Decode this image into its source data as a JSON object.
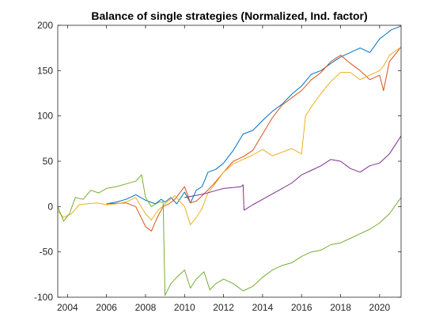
{
  "chart_data": {
    "type": "line",
    "title": "Balance of single strategies (Normalized, Ind. factor)",
    "xlabel": "",
    "ylabel": "",
    "xlim": [
      2003.5,
      2021.1
    ],
    "ylim": [
      -100,
      200
    ],
    "x_ticks": [
      2004,
      2006,
      2008,
      2010,
      2012,
      2014,
      2016,
      2018,
      2020
    ],
    "y_ticks": [
      -100,
      -50,
      0,
      50,
      100,
      150,
      200
    ],
    "grid": false,
    "legend": "none",
    "series": [
      {
        "color": "#0072BD",
        "x": [
          2006.0,
          2006.5,
          2007.0,
          2007.5,
          2008.0,
          2008.5,
          2008.8,
          2009.0,
          2009.3,
          2009.6,
          2010.0,
          2010.3,
          2010.6,
          2010.9,
          2011.2,
          2011.6,
          2012.0,
          2012.5,
          2013.0,
          2013.5,
          2014.0,
          2014.5,
          2015.0,
          2015.5,
          2016.0,
          2016.5,
          2017.0,
          2017.5,
          2018.0,
          2018.5,
          2019.0,
          2019.5,
          2020.0,
          2020.3,
          2020.6,
          2021.1
        ],
        "values": [
          3,
          5,
          8,
          13,
          7,
          3,
          8,
          5,
          10,
          3,
          16,
          4,
          18,
          22,
          38,
          41,
          48,
          62,
          80,
          84,
          95,
          105,
          113,
          124,
          133,
          146,
          150,
          158,
          165,
          170,
          175,
          170,
          185,
          190,
          195,
          199
        ]
      },
      {
        "color": "#D95319",
        "x": [
          2006.0,
          2007.0,
          2007.5,
          2008.0,
          2008.3,
          2008.6,
          2008.9,
          2009.2,
          2009.5,
          2010.0,
          2010.3,
          2010.6,
          2011.0,
          2011.5,
          2012.0,
          2012.5,
          2013.0,
          2013.5,
          2014.0,
          2014.5,
          2015.0,
          2015.5,
          2016.0,
          2016.5,
          2017.0,
          2017.5,
          2018.0,
          2018.5,
          2019.0,
          2019.5,
          2020.0,
          2020.2,
          2020.5,
          2021.1
        ],
        "values": [
          3,
          4,
          0,
          -22,
          -27,
          -12,
          0,
          3,
          8,
          22,
          4,
          6,
          14,
          25,
          38,
          50,
          55,
          62,
          80,
          98,
          112,
          120,
          128,
          140,
          148,
          160,
          167,
          158,
          150,
          140,
          145,
          128,
          160,
          176
        ]
      },
      {
        "color": "#EDB120",
        "x": [
          2003.5,
          2003.8,
          2004.2,
          2004.6,
          2005.0,
          2005.5,
          2006.0,
          2006.5,
          2007.0,
          2007.5,
          2008.0,
          2008.3,
          2008.6,
          2009.0,
          2009.5,
          2010.0,
          2010.3,
          2010.6,
          2010.9,
          2011.2,
          2011.6,
          2012.0,
          2012.5,
          2013.0,
          2013.5,
          2014.0,
          2014.5,
          2015.0,
          2015.5,
          2016.0,
          2016.2,
          2016.5,
          2017.0,
          2017.5,
          2018.0,
          2018.5,
          2019.0,
          2019.5,
          2020.0,
          2020.2,
          2020.5,
          2021.1
        ],
        "values": [
          -5,
          -12,
          -8,
          2,
          3,
          4,
          2,
          3,
          5,
          10,
          -8,
          -15,
          -5,
          3,
          12,
          0,
          -20,
          -12,
          -2,
          15,
          26,
          38,
          47,
          52,
          57,
          63,
          56,
          60,
          64,
          58,
          100,
          110,
          125,
          138,
          148,
          148,
          140,
          145,
          150,
          155,
          167,
          176
        ]
      },
      {
        "color": "#7E2F8E",
        "x": [
          2010.0,
          2010.5,
          2011.0,
          2011.5,
          2012.0,
          2012.5,
          2012.9,
          2013.0,
          2013.05,
          2013.5,
          2014.0,
          2014.5,
          2015.0,
          2015.5,
          2016.0,
          2016.5,
          2017.0,
          2017.5,
          2018.0,
          2018.5,
          2019.0,
          2019.5,
          2020.0,
          2020.5,
          2021.1
        ],
        "values": [
          10,
          12,
          14,
          17,
          20,
          21,
          22,
          24,
          -4,
          2,
          8,
          14,
          20,
          26,
          35,
          40,
          45,
          52,
          50,
          42,
          38,
          45,
          48,
          58,
          78
        ]
      },
      {
        "color": "#77AC30",
        "x": [
          2003.5,
          2003.8,
          2004.1,
          2004.4,
          2004.8,
          2005.2,
          2005.6,
          2006.0,
          2006.5,
          2007.0,
          2007.5,
          2007.8,
          2008.0,
          2008.3,
          2008.7,
          2008.9,
          2009.0,
          2009.3,
          2009.6,
          2010.0,
          2010.3,
          2010.6,
          2011.0,
          2011.3,
          2011.6,
          2012.0,
          2012.5,
          2013.0,
          2013.5,
          2014.0,
          2014.5,
          2015.0,
          2015.5,
          2016.0,
          2016.5,
          2017.0,
          2017.5,
          2018.0,
          2018.5,
          2019.0,
          2019.5,
          2020.0,
          2020.5,
          2021.1
        ],
        "values": [
          0,
          -16,
          -8,
          10,
          8,
          18,
          15,
          20,
          22,
          25,
          28,
          35,
          10,
          0,
          5,
          5,
          -98,
          -85,
          -78,
          -70,
          -90,
          -80,
          -72,
          -92,
          -85,
          -80,
          -85,
          -93,
          -88,
          -78,
          -70,
          -65,
          -62,
          -55,
          -50,
          -48,
          -42,
          -40,
          -35,
          -30,
          -25,
          -18,
          -8,
          10
        ]
      }
    ]
  }
}
